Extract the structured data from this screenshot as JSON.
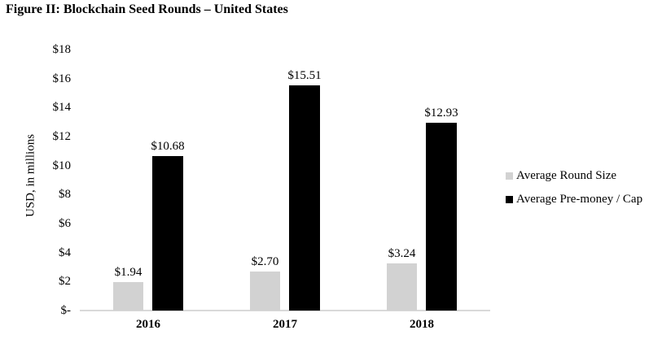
{
  "title": "Figure II: Blockchain Seed Rounds – United States",
  "chart_data": {
    "type": "bar",
    "title": "Figure II: Blockchain Seed Rounds – United States",
    "categories": [
      "2016",
      "2017",
      "2018"
    ],
    "series": [
      {
        "name": "Average Round Size",
        "color": "#d2d2d2",
        "values": [
          1.94,
          2.7,
          3.24
        ],
        "data_labels": [
          "$1.94",
          "$2.70",
          "$3.24"
        ]
      },
      {
        "name": "Average Pre-money / Cap",
        "color": "#000000",
        "values": [
          10.68,
          15.51,
          12.93
        ],
        "data_labels": [
          "$10.68",
          "$15.51",
          "$12.93"
        ]
      }
    ],
    "xlabel": "",
    "ylabel": "USD, in millions",
    "ylim": [
      0,
      18
    ],
    "ytick_step": 2,
    "ytick_labels": [
      "$-",
      "$2",
      "$4",
      "$6",
      "$8",
      "$10",
      "$12",
      "$14",
      "$16",
      "$18"
    ],
    "grid": false,
    "legend_position": "right",
    "axis_line_color": "#d9d9d9",
    "background_color": "#ffffff"
  }
}
